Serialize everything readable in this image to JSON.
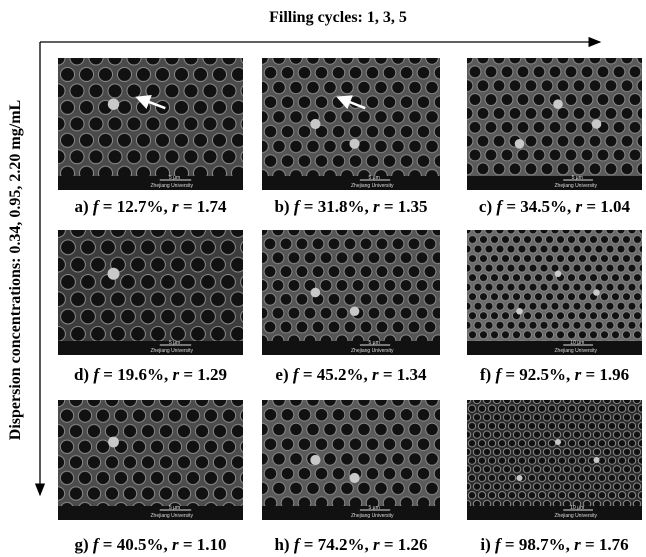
{
  "top_label": "Filling cycles: 1, 3, 5",
  "side_label": "Dispersion concentrations: 0.34, 0.95, 2.20 mg/mL",
  "panels": [
    {
      "caption": [
        "a) ",
        "f",
        " = 12.7%, ",
        "r",
        " = 1.74"
      ],
      "scale": "5 μm",
      "institution": "Zhejiang University"
    },
    {
      "caption": [
        "b) ",
        "f",
        " = 31.8%, ",
        "r",
        " = 1.35"
      ],
      "scale": "5 μm",
      "institution": "Zhejiang University"
    },
    {
      "caption": [
        "c) ",
        "f",
        " = 34.5%, ",
        "r",
        " = 1.04"
      ],
      "scale": "5 μm",
      "institution": "Zhejiang University"
    },
    {
      "caption": [
        "d) ",
        "f",
        " = 19.6%, ",
        "r",
        " = 1.29"
      ],
      "scale": "5 μm",
      "institution": "Zhejiang University"
    },
    {
      "caption": [
        "e) ",
        "f",
        " = 45.2%, ",
        "r",
        " = 1.34"
      ],
      "scale": "5 μm",
      "institution": "Zhejiang University"
    },
    {
      "caption": [
        "f) ",
        "f",
        " = 92.5%, ",
        "r",
        " = 1.96"
      ],
      "scale": "10 μm",
      "institution": "Zhejiang University"
    },
    {
      "caption": [
        "g) ",
        "f",
        " = 40.5%, ",
        "r",
        " = 1.10"
      ],
      "scale": "5 μm",
      "institution": "Zhejiang University"
    },
    {
      "caption": [
        "h) ",
        "f",
        " = 74.2%, ",
        "r",
        " = 1.26"
      ],
      "scale": "5 μm",
      "institution": "Zhejiang University"
    },
    {
      "caption": [
        "i) ",
        "f",
        " = 98.7%, ",
        "r",
        " = 1.76"
      ],
      "scale": "10 μm",
      "institution": "Zhejiang University"
    }
  ]
}
